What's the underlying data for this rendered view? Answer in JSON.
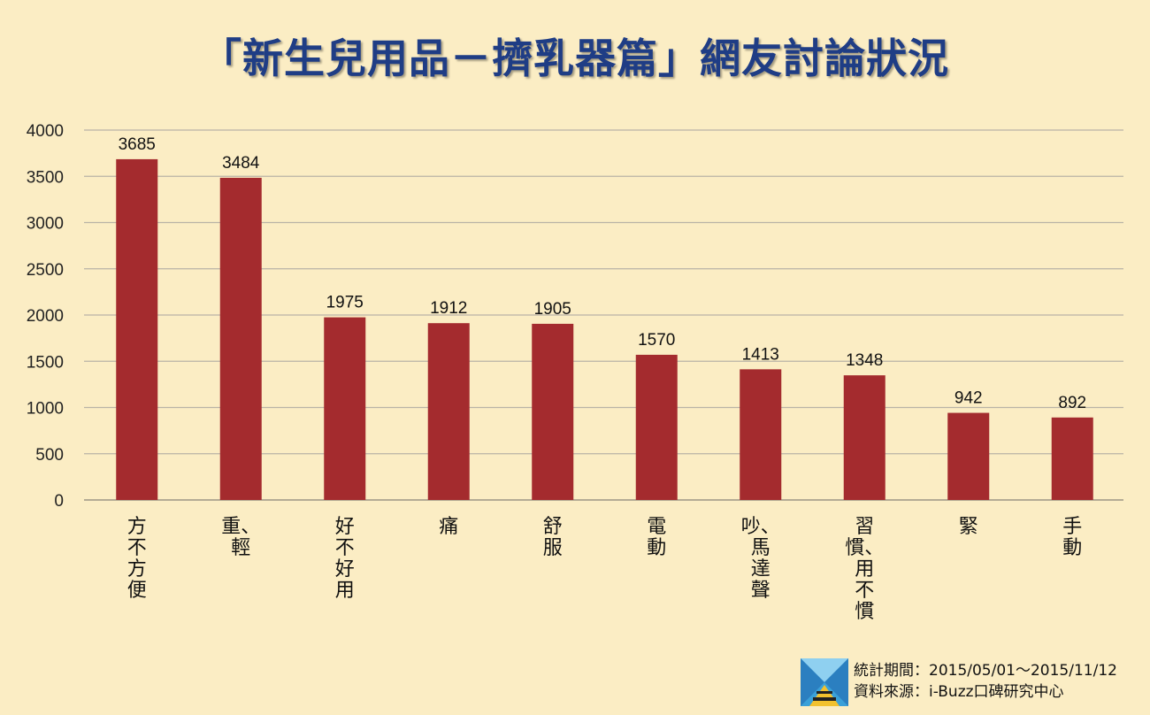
{
  "title": "「新生兒用品－擠乳器篇」網友討論狀況",
  "footer": {
    "period": "統計期間：2015/05/01～2015/11/12",
    "source": "資料來源：i-Buzz口碑研究中心"
  },
  "colors": {
    "background": "#fbedc4",
    "bar": "#a42b2e",
    "title": "#1f3d85",
    "grid": "#b9b3a6"
  },
  "chart_data": {
    "type": "bar",
    "categories": [
      "方不方便",
      "重、輕",
      "好不好用",
      "痛",
      "舒服",
      "電動",
      "吵、馬達聲",
      "習慣、用不慣",
      "緊",
      "手動"
    ],
    "values": [
      3685,
      3484,
      1975,
      1912,
      1905,
      1570,
      1413,
      1348,
      942,
      892
    ],
    "ylim": [
      0,
      4000
    ],
    "yticks": [
      0,
      500,
      1000,
      1500,
      2000,
      2500,
      3000,
      3500,
      4000
    ],
    "grid": true,
    "data_labels": true,
    "legend": "none",
    "xlabel": "",
    "ylabel": ""
  }
}
